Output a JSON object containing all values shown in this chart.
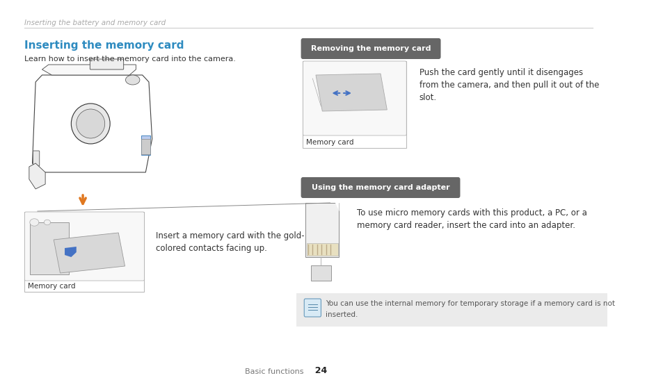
{
  "bg_color": "#ffffff",
  "page_width": 9.54,
  "page_height": 5.57,
  "header_text": "Inserting the battery and memory card",
  "header_color": "#aaaaaa",
  "section_title": "Inserting the memory card",
  "section_title_color": "#2e8bc0",
  "subtitle": "Learn how to insert the memory card into the camera.",
  "insert_text_line1": "Insert a memory card with the gold-",
  "insert_text_line2": "colored contacts facing up.",
  "memory_card_label": "Memory card",
  "remove_badge_text": "Removing the memory card",
  "remove_badge_color": "#666666",
  "remove_text_line1": "Push the card gently until it disengages",
  "remove_text_line2": "from the camera, and then pull it out of the",
  "remove_text_line3": "slot.",
  "memory_card_label2": "Memory card",
  "adapter_badge_text": "Using the memory card adapter",
  "adapter_text_line1": "To use micro memory cards with this product, a PC, or a",
  "adapter_text_line2": "memory card reader, insert the card into an adapter.",
  "note_text_line1": "You can use the internal memory for temporary storage if a memory card is not",
  "note_text_line2": "inserted.",
  "note_bg_color": "#ebebeb",
  "footer_text": "Basic functions",
  "footer_page": "24",
  "arrow_color": "#e07820",
  "blue_color": "#4472c4",
  "text_color": "#333333",
  "light_gray": "#f2f2f2",
  "mid_gray": "#cccccc",
  "dark_gray": "#555555"
}
